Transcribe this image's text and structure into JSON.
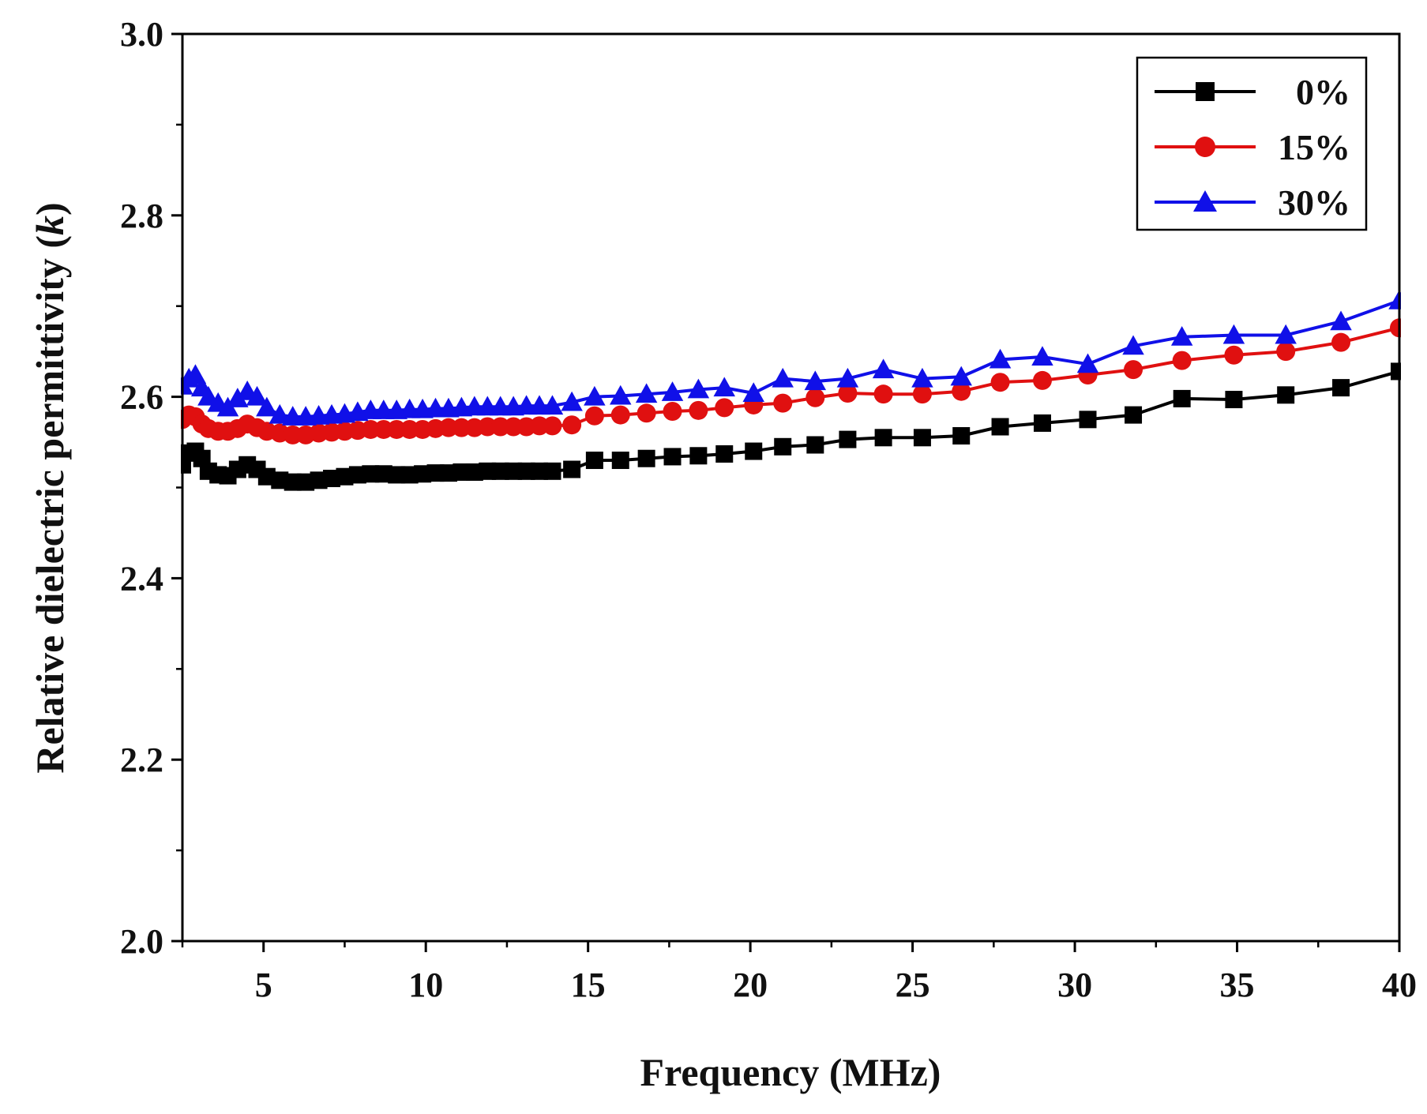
{
  "chart_data": {
    "type": "line",
    "title": "",
    "xlabel": "Frequency (MHz)",
    "ylabel_main": "Relative dielectric permittivity (",
    "ylabel_symbol": "k",
    "ylabel_close": ")",
    "xlim": [
      2.5,
      40
    ],
    "ylim": [
      2.0,
      3.0
    ],
    "xticks": [
      5,
      10,
      15,
      20,
      25,
      30,
      35,
      40
    ],
    "xtick_labels": [
      "5",
      "10",
      "15",
      "20",
      "25",
      "30",
      "35",
      "40"
    ],
    "yticks": [
      2.0,
      2.2,
      2.4,
      2.6,
      2.8,
      3.0
    ],
    "ytick_labels": [
      "2.0",
      "2.2",
      "2.4",
      "2.6",
      "2.8",
      "3.0"
    ],
    "legend_position": "top-right",
    "series": [
      {
        "name": "0%",
        "color": "#000000",
        "marker": "square",
        "x": [
          2.5,
          2.7,
          2.9,
          3.1,
          3.3,
          3.6,
          3.9,
          4.2,
          4.5,
          4.8,
          5.1,
          5.5,
          5.9,
          6.3,
          6.7,
          7.1,
          7.5,
          7.9,
          8.3,
          8.7,
          9.1,
          9.5,
          9.9,
          10.3,
          10.7,
          11.1,
          11.5,
          11.9,
          12.3,
          12.7,
          13.1,
          13.5,
          13.9,
          14.5,
          15.2,
          16.0,
          16.8,
          17.6,
          18.4,
          19.2,
          20.1,
          21.0,
          22.0,
          23.0,
          24.1,
          25.3,
          26.5,
          27.7,
          29.0,
          30.4,
          31.8,
          33.3,
          34.9,
          36.5,
          38.2,
          40.0
        ],
        "y": [
          2.525,
          2.538,
          2.54,
          2.532,
          2.518,
          2.514,
          2.513,
          2.52,
          2.525,
          2.52,
          2.512,
          2.508,
          2.506,
          2.506,
          2.508,
          2.51,
          2.512,
          2.514,
          2.515,
          2.515,
          2.514,
          2.514,
          2.515,
          2.516,
          2.516,
          2.517,
          2.517,
          2.518,
          2.518,
          2.518,
          2.518,
          2.518,
          2.518,
          2.52,
          2.53,
          2.53,
          2.532,
          2.534,
          2.535,
          2.537,
          2.54,
          2.545,
          2.547,
          2.553,
          2.555,
          2.555,
          2.557,
          2.567,
          2.571,
          2.575,
          2.58,
          2.598,
          2.597,
          2.602,
          2.61,
          2.628
        ]
      },
      {
        "name": "15%",
        "color": "#e01010",
        "marker": "circle",
        "x": [
          2.5,
          2.7,
          2.9,
          3.1,
          3.3,
          3.6,
          3.9,
          4.2,
          4.5,
          4.8,
          5.1,
          5.5,
          5.9,
          6.3,
          6.7,
          7.1,
          7.5,
          7.9,
          8.3,
          8.7,
          9.1,
          9.5,
          9.9,
          10.3,
          10.7,
          11.1,
          11.5,
          11.9,
          12.3,
          12.7,
          13.1,
          13.5,
          13.9,
          14.5,
          15.2,
          16.0,
          16.8,
          17.6,
          18.4,
          19.2,
          20.1,
          21.0,
          22.0,
          23.0,
          24.1,
          25.3,
          26.5,
          27.7,
          29.0,
          30.4,
          31.8,
          33.3,
          34.9,
          36.5,
          38.2,
          40.0
        ],
        "y": [
          2.575,
          2.58,
          2.578,
          2.57,
          2.565,
          2.562,
          2.562,
          2.565,
          2.57,
          2.566,
          2.562,
          2.56,
          2.558,
          2.558,
          2.56,
          2.561,
          2.562,
          2.563,
          2.564,
          2.564,
          2.564,
          2.564,
          2.564,
          2.565,
          2.566,
          2.566,
          2.566,
          2.567,
          2.567,
          2.567,
          2.567,
          2.568,
          2.568,
          2.569,
          2.579,
          2.58,
          2.582,
          2.584,
          2.585,
          2.588,
          2.591,
          2.593,
          2.599,
          2.604,
          2.603,
          2.603,
          2.606,
          2.616,
          2.618,
          2.624,
          2.63,
          2.64,
          2.646,
          2.65,
          2.66,
          2.676
        ]
      },
      {
        "name": "30%",
        "color": "#1010e8",
        "marker": "triangle",
        "x": [
          2.5,
          2.7,
          2.9,
          3.1,
          3.3,
          3.6,
          3.9,
          4.2,
          4.5,
          4.8,
          5.1,
          5.5,
          5.9,
          6.3,
          6.7,
          7.1,
          7.5,
          7.9,
          8.3,
          8.7,
          9.1,
          9.5,
          9.9,
          10.3,
          10.7,
          11.1,
          11.5,
          11.9,
          12.3,
          12.7,
          13.1,
          13.5,
          13.9,
          14.5,
          15.2,
          16.0,
          16.8,
          17.6,
          18.4,
          19.2,
          20.1,
          21.0,
          22.0,
          23.0,
          24.1,
          25.3,
          26.5,
          27.7,
          29.0,
          30.4,
          31.8,
          33.3,
          34.9,
          36.5,
          38.2,
          40.0
        ],
        "y": [
          2.612,
          2.62,
          2.624,
          2.61,
          2.6,
          2.593,
          2.588,
          2.598,
          2.606,
          2.6,
          2.588,
          2.58,
          2.578,
          2.578,
          2.579,
          2.58,
          2.581,
          2.583,
          2.585,
          2.585,
          2.585,
          2.586,
          2.586,
          2.587,
          2.587,
          2.588,
          2.589,
          2.589,
          2.589,
          2.589,
          2.59,
          2.59,
          2.59,
          2.594,
          2.6,
          2.601,
          2.603,
          2.605,
          2.608,
          2.61,
          2.604,
          2.62,
          2.617,
          2.62,
          2.63,
          2.62,
          2.622,
          2.641,
          2.644,
          2.636,
          2.656,
          2.666,
          2.668,
          2.668,
          2.683,
          2.706
        ]
      }
    ]
  }
}
